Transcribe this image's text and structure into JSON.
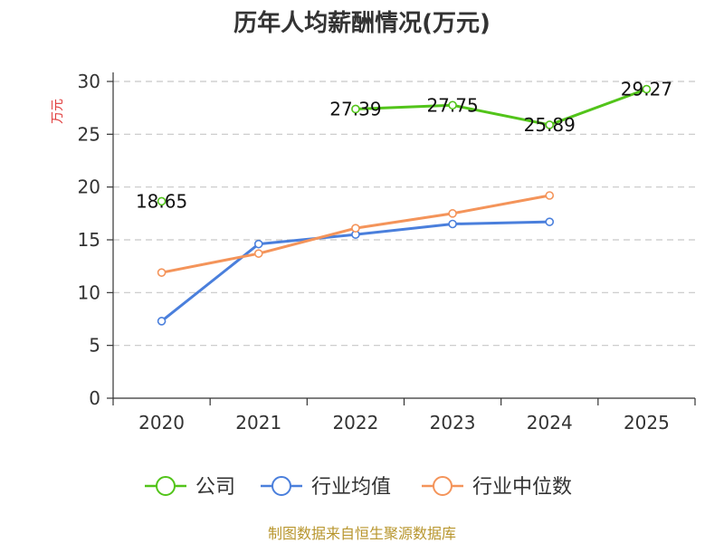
{
  "chart_data": {
    "type": "line",
    "title": "历年人均薪酬情况(万元)",
    "ylabel": "万元",
    "xlabel": "",
    "categories": [
      "2020",
      "2021",
      "2022",
      "2023",
      "2024",
      "2025"
    ],
    "ylim": [
      0,
      30
    ],
    "yticks": [
      0,
      5,
      10,
      15,
      20,
      25,
      30
    ],
    "grid": true,
    "series": [
      {
        "name": "公司",
        "color": "#52c41a",
        "values": [
          18.65,
          null,
          27.39,
          27.75,
          25.89,
          29.27
        ],
        "labels": [
          "18.65",
          "",
          "27.39",
          "27.75",
          "25.89",
          "29.27"
        ]
      },
      {
        "name": "行业均值",
        "color": "#4a7fdc",
        "values": [
          7.3,
          14.6,
          15.5,
          16.5,
          16.7,
          null
        ]
      },
      {
        "name": "行业中位数",
        "color": "#f4945a",
        "values": [
          11.9,
          13.7,
          16.1,
          17.5,
          19.2,
          null
        ]
      }
    ],
    "legend_position": "bottom",
    "source": "制图数据来自恒生聚源数据库"
  }
}
